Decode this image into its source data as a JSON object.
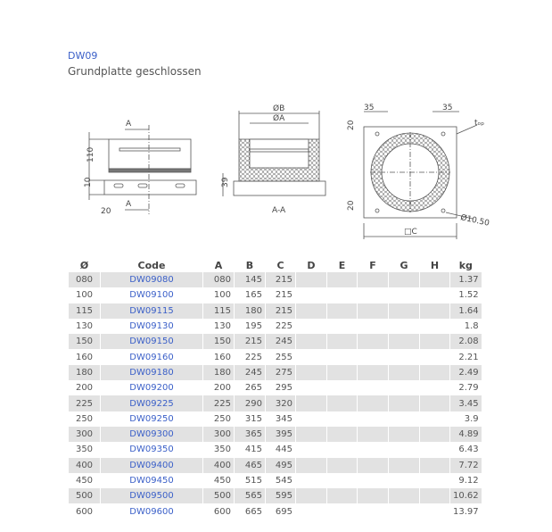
{
  "product": {
    "code": "DW09",
    "name": "Grundplatte geschlossen"
  },
  "drawing_labels": {
    "section_marker": "A",
    "dim_110": "110",
    "dim_10": "10",
    "dim_20_left": "20",
    "dim_39": "39",
    "dia_b": "ØB",
    "dia_a": "ØA",
    "section_name": "A-A",
    "dim_35_left": "35",
    "dim_35_right": "35",
    "dim_20_top": "20",
    "dim_20_bottom": "20",
    "t_op": "tₒₚ",
    "hole_dia": "Ø10.50",
    "square_c": "□C"
  },
  "table": {
    "headers": [
      "Ø",
      "Code",
      "A",
      "B",
      "C",
      "D",
      "E",
      "F",
      "G",
      "H",
      "kg"
    ],
    "rows": [
      [
        "080",
        "DW09080",
        "080",
        "145",
        "215",
        "",
        "",
        "",
        "",
        "",
        "1.37"
      ],
      [
        "100",
        "DW09100",
        "100",
        "165",
        "215",
        "",
        "",
        "",
        "",
        "",
        "1.52"
      ],
      [
        "115",
        "DW09115",
        "115",
        "180",
        "215",
        "",
        "",
        "",
        "",
        "",
        "1.64"
      ],
      [
        "130",
        "DW09130",
        "130",
        "195",
        "225",
        "",
        "",
        "",
        "",
        "",
        "1.8"
      ],
      [
        "150",
        "DW09150",
        "150",
        "215",
        "245",
        "",
        "",
        "",
        "",
        "",
        "2.08"
      ],
      [
        "160",
        "DW09160",
        "160",
        "225",
        "255",
        "",
        "",
        "",
        "",
        "",
        "2.21"
      ],
      [
        "180",
        "DW09180",
        "180",
        "245",
        "275",
        "",
        "",
        "",
        "",
        "",
        "2.49"
      ],
      [
        "200",
        "DW09200",
        "200",
        "265",
        "295",
        "",
        "",
        "",
        "",
        "",
        "2.79"
      ],
      [
        "225",
        "DW09225",
        "225",
        "290",
        "320",
        "",
        "",
        "",
        "",
        "",
        "3.45"
      ],
      [
        "250",
        "DW09250",
        "250",
        "315",
        "345",
        "",
        "",
        "",
        "",
        "",
        "3.9"
      ],
      [
        "300",
        "DW09300",
        "300",
        "365",
        "395",
        "",
        "",
        "",
        "",
        "",
        "4.89"
      ],
      [
        "350",
        "DW09350",
        "350",
        "415",
        "445",
        "",
        "",
        "",
        "",
        "",
        "6.43"
      ],
      [
        "400",
        "DW09400",
        "400",
        "465",
        "495",
        "",
        "",
        "",
        "",
        "",
        "7.72"
      ],
      [
        "450",
        "DW09450",
        "450",
        "515",
        "545",
        "",
        "",
        "",
        "",
        "",
        "9.12"
      ],
      [
        "500",
        "DW09500",
        "500",
        "565",
        "595",
        "",
        "",
        "",
        "",
        "",
        "10.62"
      ],
      [
        "600",
        "DW09600",
        "600",
        "665",
        "695",
        "",
        "",
        "",
        "",
        "",
        "13.97"
      ]
    ]
  },
  "colors": {
    "link": "#3a5fc8",
    "row_alt": "#e2e2e2"
  }
}
